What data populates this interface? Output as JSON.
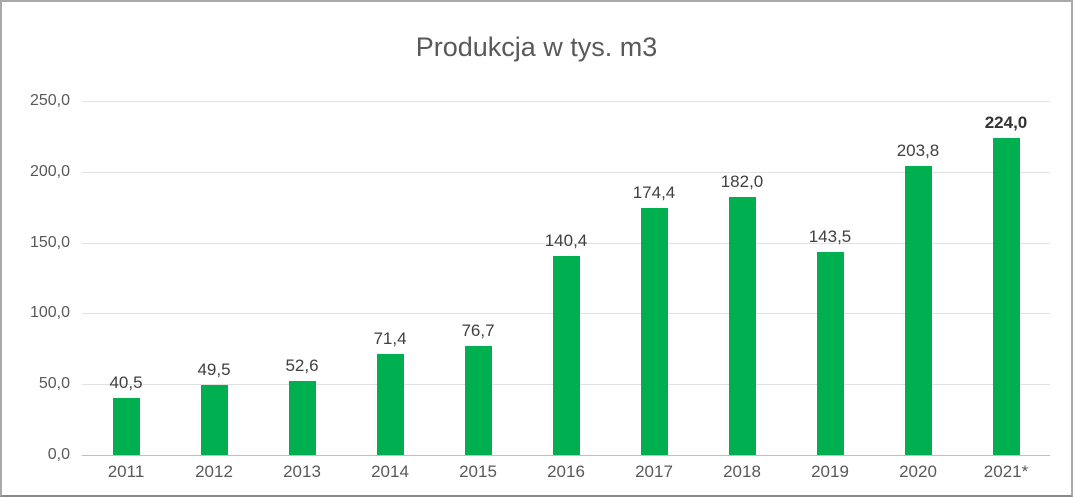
{
  "chart_data": {
    "type": "bar",
    "title": "Produkcja w tys. m3",
    "categories": [
      "2011",
      "2012",
      "2013",
      "2014",
      "2015",
      "2016",
      "2017",
      "2018",
      "2019",
      "2020",
      "2021*"
    ],
    "values": [
      40.5,
      49.5,
      52.6,
      71.4,
      76.7,
      140.4,
      174.4,
      182.0,
      143.5,
      203.8,
      224.0
    ],
    "value_labels": [
      "40,5",
      "49,5",
      "52,6",
      "71,4",
      "76,7",
      "140,4",
      "174,4",
      "182,0",
      "143,5",
      "203,8",
      "224,0"
    ],
    "bold_last_label": true,
    "xlabel": "",
    "ylabel": "",
    "ylim": [
      0,
      250
    ],
    "y_tick_step": 50,
    "y_tick_labels": [
      "0,0",
      "50,0",
      "100,0",
      "150,0",
      "200,0",
      "250,0"
    ],
    "grid": true,
    "legend": "none"
  },
  "colors": {
    "bar": "#00B050",
    "title_text": "#595959",
    "axis_text": "#595959",
    "value_label_text": "#404040",
    "gridline": "#e2e2e2",
    "axis_line": "#bfbfbf"
  }
}
